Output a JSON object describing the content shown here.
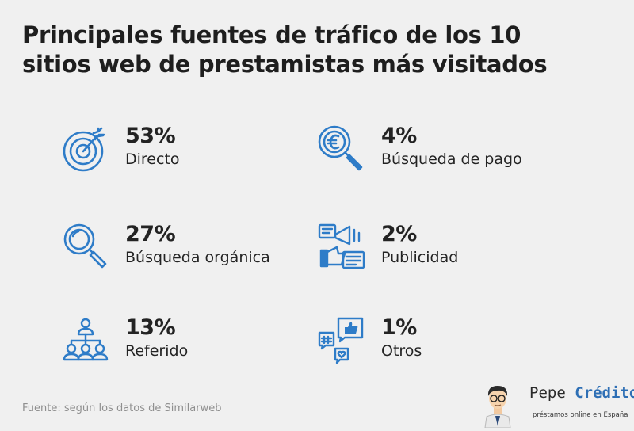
{
  "title": "Principales fuentes de tráfico de los 10 sitios web de prestamistas más visitados",
  "stats": [
    {
      "value": "53%",
      "label": "Directo",
      "icon": "target-icon"
    },
    {
      "value": "4%",
      "label": "Búsqueda de pago",
      "icon": "euro-magnifier-icon"
    },
    {
      "value": "27%",
      "label": "Búsqueda orgánica",
      "icon": "magnifier-icon"
    },
    {
      "value": "2%",
      "label": "Publicidad",
      "icon": "megaphone-ads-icon"
    },
    {
      "value": "13%",
      "label": "Referido",
      "icon": "people-network-icon"
    },
    {
      "value": "1%",
      "label": "Otros",
      "icon": "social-bubbles-icon"
    }
  ],
  "source": "Fuente: según los datos de Similarweb",
  "brand": {
    "name_first": "Pepe ",
    "name_second": "Crédito",
    "tagline": "préstamos online en España"
  },
  "colors": {
    "accent": "#2e7cc8",
    "text": "#232323",
    "background": "#f0f0f0"
  }
}
